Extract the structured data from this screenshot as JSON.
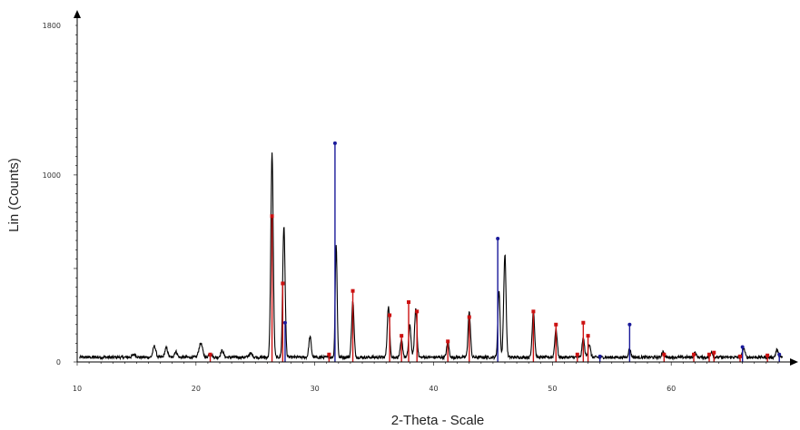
{
  "chart_data": {
    "type": "line",
    "title": "",
    "xlabel": "2-Theta - Scale",
    "ylabel": "Lin (Counts)",
    "xlim": [
      10,
      70
    ],
    "ylim": [
      0,
      1800
    ],
    "x_ticks": [
      10,
      20,
      30,
      40,
      50,
      60
    ],
    "y_ticks": [
      0,
      1000,
      1800
    ],
    "grid": false,
    "legend": "none",
    "colors": {
      "pattern": "#000000",
      "phase_red": "#cc1111",
      "phase_blue": "#1a1a9a"
    },
    "pattern": {
      "baseline": 25,
      "noise": 8,
      "peaks": [
        [
          14.8,
          15,
          0.15
        ],
        [
          16.5,
          60,
          0.12
        ],
        [
          17.5,
          50,
          0.12
        ],
        [
          18.3,
          30,
          0.12
        ],
        [
          20.4,
          75,
          0.15
        ],
        [
          21.2,
          25,
          0.12
        ],
        [
          22.2,
          35,
          0.12
        ],
        [
          24.6,
          20,
          0.15
        ],
        [
          26.4,
          1090,
          0.1
        ],
        [
          27.4,
          700,
          0.1
        ],
        [
          29.6,
          110,
          0.1
        ],
        [
          31.8,
          600,
          0.08
        ],
        [
          33.2,
          300,
          0.1
        ],
        [
          36.2,
          270,
          0.1
        ],
        [
          37.3,
          90,
          0.1
        ],
        [
          38.0,
          170,
          0.1
        ],
        [
          38.5,
          260,
          0.1
        ],
        [
          41.2,
          80,
          0.1
        ],
        [
          43.0,
          240,
          0.1
        ],
        [
          45.5,
          360,
          0.09
        ],
        [
          46.0,
          550,
          0.1
        ],
        [
          48.4,
          250,
          0.1
        ],
        [
          50.3,
          150,
          0.1
        ],
        [
          52.6,
          100,
          0.1
        ],
        [
          53.1,
          70,
          0.1
        ],
        [
          56.5,
          45,
          0.1
        ],
        [
          59.3,
          30,
          0.1
        ],
        [
          62.0,
          25,
          0.1
        ],
        [
          63.4,
          30,
          0.1
        ],
        [
          66.1,
          50,
          0.1
        ],
        [
          68.9,
          40,
          0.1
        ]
      ]
    },
    "reference_lines": {
      "red": [
        [
          21.2,
          40
        ],
        [
          26.4,
          780
        ],
        [
          27.3,
          420
        ],
        [
          31.2,
          40
        ],
        [
          33.2,
          380
        ],
        [
          36.3,
          250
        ],
        [
          37.3,
          140
        ],
        [
          37.9,
          320
        ],
        [
          38.6,
          270
        ],
        [
          41.2,
          110
        ],
        [
          43.0,
          240
        ],
        [
          48.4,
          270
        ],
        [
          50.3,
          200
        ],
        [
          52.1,
          40
        ],
        [
          52.6,
          210
        ],
        [
          53.0,
          140
        ],
        [
          59.4,
          40
        ],
        [
          61.9,
          40
        ],
        [
          63.2,
          40
        ],
        [
          63.6,
          50
        ],
        [
          65.8,
          30
        ],
        [
          68.1,
          35
        ]
      ],
      "blue": [
        [
          27.5,
          210
        ],
        [
          31.7,
          1170
        ],
        [
          45.4,
          660
        ],
        [
          54.0,
          30
        ],
        [
          56.5,
          200
        ],
        [
          66.0,
          80
        ],
        [
          69.1,
          40
        ]
      ]
    }
  }
}
